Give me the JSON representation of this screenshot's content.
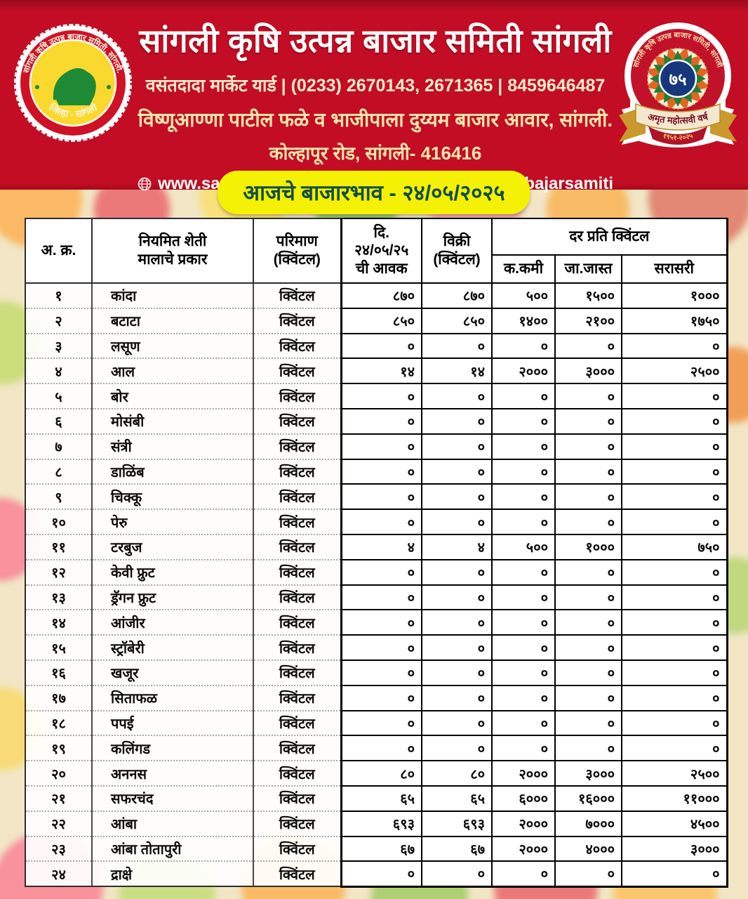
{
  "colors": {
    "header_red": "#c30d24",
    "banner_yellow": "#f4f104",
    "banner_text_green": "#114e44",
    "seal_yellow": "#f9d92e",
    "badge_navy": "#16377c"
  },
  "header": {
    "title": "सांगली कृषि उत्पन्न बाजार समिती सांगली",
    "contact_line": "वसंतदादा मार्केट यार्ड | (0233) 2670143, 2671365 | 8459646487",
    "submarket_line": "विष्णूआण्णा पाटील फळे व भाजीपाला दुय्यम बाजार आवार, सांगली.",
    "address_line": "कोल्हापूर रोड, सांगली- 416416",
    "website": "www.sangliapmc.in",
    "social_handle": "sanglikrushiutpannabajarsamiti",
    "left_seal": {
      "arc_top": "सांगली कृषि उत्पन्न बाजार समिती, सांगली.",
      "arc_bottom": "जिल्हा - सांगली"
    },
    "right_badge": {
      "arc_top": "सांगली कृषि उत्पन्न बाजार समिती, सांगली",
      "center_number": "७५",
      "ribbon": "अमृत महोत्सवी वर्ष",
      "years": "१९५१-२०२५"
    }
  },
  "banner": {
    "date_line": "आजचे बाजारभाव -  २४/०५/२०२५"
  },
  "table": {
    "headers": {
      "serial": "अ. क्र.",
      "commodity": "नियमित शेती\nमालाचे प्रकार",
      "unit": "परिमाण\n(क्विंटल)",
      "arrival": "दि.\n२४/०५/२५\nची आवक",
      "sale": "विक्री\n(क्विंटल)"
    },
    "rate_group": {
      "label": "दर प्रति क्विंटल",
      "sub": [
        "क.कमी",
        "जा.जास्त",
        "सरासरी"
      ]
    },
    "rows": [
      {
        "sr": "१",
        "name": "कांदा",
        "unit": "क्विंटल",
        "arrival": "८७०",
        "sale": "८७०",
        "min": "५००",
        "max": "१५००",
        "avg": "१०००"
      },
      {
        "sr": "२",
        "name": "बटाटा",
        "unit": "क्विंटल",
        "arrival": "८५०",
        "sale": "८५०",
        "min": "१४००",
        "max": "२१००",
        "avg": "१७५०"
      },
      {
        "sr": "३",
        "name": "लसूण",
        "unit": "क्विंटल",
        "arrival": "०",
        "sale": "०",
        "min": "०",
        "max": "०",
        "avg": "०"
      },
      {
        "sr": "४",
        "name": "आल",
        "unit": "क्विंटल",
        "arrival": "१४",
        "sale": "१४",
        "min": "२०००",
        "max": "३०००",
        "avg": "२५००"
      },
      {
        "sr": "५",
        "name": "बोर",
        "unit": "क्विंटल",
        "arrival": "०",
        "sale": "०",
        "min": "०",
        "max": "०",
        "avg": "०"
      },
      {
        "sr": "६",
        "name": "मोसंबी",
        "unit": "क्विंटल",
        "arrival": "०",
        "sale": "०",
        "min": "०",
        "max": "०",
        "avg": "०"
      },
      {
        "sr": "७",
        "name": "संत्री",
        "unit": "क्विंटल",
        "arrival": "०",
        "sale": "०",
        "min": "०",
        "max": "०",
        "avg": "०"
      },
      {
        "sr": "८",
        "name": "डाळिंब",
        "unit": "क्विंटल",
        "arrival": "०",
        "sale": "०",
        "min": "०",
        "max": "०",
        "avg": "०"
      },
      {
        "sr": "९",
        "name": "चिक्कू",
        "unit": "क्विंटल",
        "arrival": "०",
        "sale": "०",
        "min": "०",
        "max": "०",
        "avg": "०"
      },
      {
        "sr": "१०",
        "name": "पेरु",
        "unit": "क्विंटल",
        "arrival": "०",
        "sale": "०",
        "min": "०",
        "max": "०",
        "avg": "०"
      },
      {
        "sr": "११",
        "name": "टरबुज",
        "unit": "क्विंटल",
        "arrival": "४",
        "sale": "४",
        "min": "५००",
        "max": "१०००",
        "avg": "७५०"
      },
      {
        "sr": "१२",
        "name": "केवी फ्रुट",
        "unit": "क्विंटल",
        "arrival": "०",
        "sale": "०",
        "min": "०",
        "max": "०",
        "avg": "०"
      },
      {
        "sr": "१३",
        "name": "ड्रॅगन फ्रुट",
        "unit": "क्विंटल",
        "arrival": "०",
        "sale": "०",
        "min": "०",
        "max": "०",
        "avg": "०"
      },
      {
        "sr": "१४",
        "name": "आंजीर",
        "unit": "क्विंटल",
        "arrival": "०",
        "sale": "०",
        "min": "०",
        "max": "०",
        "avg": "०"
      },
      {
        "sr": "१५",
        "name": "स्ट्रॉबेरी",
        "unit": "क्विंटल",
        "arrival": "०",
        "sale": "०",
        "min": "०",
        "max": "०",
        "avg": "०"
      },
      {
        "sr": "१६",
        "name": "खजूर",
        "unit": "क्विंटल",
        "arrival": "०",
        "sale": "०",
        "min": "०",
        "max": "०",
        "avg": "०"
      },
      {
        "sr": "१७",
        "name": "सिताफळ",
        "unit": "क्विंटल",
        "arrival": "०",
        "sale": "०",
        "min": "०",
        "max": "०",
        "avg": "०"
      },
      {
        "sr": "१८",
        "name": "पपई",
        "unit": "क्विंटल",
        "arrival": "०",
        "sale": "०",
        "min": "०",
        "max": "०",
        "avg": "०"
      },
      {
        "sr": "१९",
        "name": "कलिंगड",
        "unit": "क्विंटल",
        "arrival": "०",
        "sale": "०",
        "min": "०",
        "max": "०",
        "avg": "०"
      },
      {
        "sr": "२०",
        "name": "अननस",
        "unit": "क्विंटल",
        "arrival": "८०",
        "sale": "८०",
        "min": "२०००",
        "max": "३०००",
        "avg": "२५००"
      },
      {
        "sr": "२१",
        "name": "सफरचंद",
        "unit": "क्विंटल",
        "arrival": "६५",
        "sale": "६५",
        "min": "६०००",
        "max": "१६०००",
        "avg": "११०००"
      },
      {
        "sr": "२२",
        "name": "आंबा",
        "unit": "क्विंटल",
        "arrival": "६९३",
        "sale": "६९३",
        "min": "२०००",
        "max": "७०००",
        "avg": "४५००"
      },
      {
        "sr": "२३",
        "name": "आंबा तोतापुरी",
        "unit": "क्विंटल",
        "arrival": "६७",
        "sale": "६७",
        "min": "२०००",
        "max": "४०००",
        "avg": "३०००"
      },
      {
        "sr": "२४",
        "name": "द्राक्षे",
        "unit": "क्विंटल",
        "arrival": "०",
        "sale": "०",
        "min": "०",
        "max": "०",
        "avg": "०"
      }
    ]
  }
}
